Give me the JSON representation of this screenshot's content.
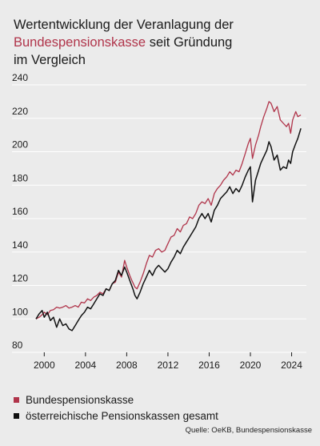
{
  "header": {
    "title_line1": "Wertentwicklung der Veranlagung der",
    "title_highlight": "Bundespensionskasse",
    "title_line2_rest": " seit Gründung",
    "title_line3": "im Vergleich"
  },
  "colors": {
    "accent": "#b0344a",
    "series_black": "#111111",
    "background": "#ebebeb"
  },
  "legend": [
    {
      "label": "Bundespensionskasse",
      "color": "#b0344a"
    },
    {
      "label": "österreichische Pensionskassen gesamt",
      "color": "#111111"
    }
  ],
  "source": "Quelle: OeKB, Bundespensionskasse",
  "chart_data": {
    "type": "line",
    "xlim": [
      1999.2,
      2025.2
    ],
    "ylim": [
      80,
      240
    ],
    "x_ticks": [
      2000,
      2004,
      2008,
      2012,
      2016,
      2020,
      2024
    ],
    "x_tick_labels": [
      "2000",
      "2004",
      "2008",
      "2012",
      "2016",
      "2020",
      "2024"
    ],
    "y_ticks": [
      80,
      100,
      120,
      140,
      160,
      180,
      200,
      220,
      240
    ],
    "y_tick_labels": [
      "80",
      "100",
      "120",
      "140",
      "160",
      "180",
      "200",
      "220",
      "240"
    ],
    "grid": true,
    "series": [
      {
        "name": "Bundespensionskasse",
        "color": "#b0344a",
        "points": [
          [
            1999.2,
            100
          ],
          [
            1999.5,
            101
          ],
          [
            1999.8,
            102.5
          ],
          [
            2000.0,
            104
          ],
          [
            2000.3,
            102.5
          ],
          [
            2000.6,
            105
          ],
          [
            2000.9,
            105.5
          ],
          [
            2001.2,
            107
          ],
          [
            2001.5,
            106.5
          ],
          [
            2001.8,
            107
          ],
          [
            2002.1,
            108
          ],
          [
            2002.4,
            106.5
          ],
          [
            2002.7,
            107
          ],
          [
            2003.0,
            108
          ],
          [
            2003.3,
            107
          ],
          [
            2003.6,
            110
          ],
          [
            2003.9,
            109.5
          ],
          [
            2004.2,
            112
          ],
          [
            2004.5,
            111
          ],
          [
            2004.8,
            113
          ],
          [
            2005.1,
            114
          ],
          [
            2005.4,
            116
          ],
          [
            2005.7,
            115
          ],
          [
            2006.0,
            118
          ],
          [
            2006.3,
            117
          ],
          [
            2006.6,
            121
          ],
          [
            2006.9,
            122
          ],
          [
            2007.2,
            128
          ],
          [
            2007.5,
            125
          ],
          [
            2007.8,
            135
          ],
          [
            2008.0,
            131
          ],
          [
            2008.3,
            126
          ],
          [
            2008.5,
            123
          ],
          [
            2008.8,
            119
          ],
          [
            2009.0,
            118
          ],
          [
            2009.3,
            122
          ],
          [
            2009.6,
            127
          ],
          [
            2009.9,
            133
          ],
          [
            2010.2,
            138
          ],
          [
            2010.5,
            137
          ],
          [
            2010.8,
            141
          ],
          [
            2011.1,
            142
          ],
          [
            2011.4,
            140
          ],
          [
            2011.7,
            141
          ],
          [
            2012.0,
            145
          ],
          [
            2012.3,
            149
          ],
          [
            2012.6,
            150
          ],
          [
            2012.9,
            154
          ],
          [
            2013.2,
            152
          ],
          [
            2013.5,
            156
          ],
          [
            2013.8,
            157
          ],
          [
            2014.1,
            161
          ],
          [
            2014.4,
            160
          ],
          [
            2014.7,
            163
          ],
          [
            2015.0,
            168
          ],
          [
            2015.3,
            170
          ],
          [
            2015.6,
            169
          ],
          [
            2015.9,
            172
          ],
          [
            2016.2,
            168
          ],
          [
            2016.5,
            175
          ],
          [
            2016.8,
            178
          ],
          [
            2017.1,
            180
          ],
          [
            2017.4,
            183
          ],
          [
            2017.7,
            185
          ],
          [
            2018.0,
            188
          ],
          [
            2018.3,
            186
          ],
          [
            2018.6,
            189
          ],
          [
            2018.9,
            188
          ],
          [
            2019.2,
            193
          ],
          [
            2019.5,
            199
          ],
          [
            2019.8,
            205
          ],
          [
            2020.0,
            208
          ],
          [
            2020.2,
            196
          ],
          [
            2020.5,
            204
          ],
          [
            2020.8,
            210
          ],
          [
            2021.0,
            215
          ],
          [
            2021.3,
            221
          ],
          [
            2021.6,
            226
          ],
          [
            2021.8,
            230
          ],
          [
            2022.0,
            229
          ],
          [
            2022.3,
            224
          ],
          [
            2022.6,
            227
          ],
          [
            2022.9,
            219
          ],
          [
            2023.2,
            217
          ],
          [
            2023.5,
            215
          ],
          [
            2023.7,
            217
          ],
          [
            2023.9,
            211
          ],
          [
            2024.1,
            219
          ],
          [
            2024.4,
            224
          ],
          [
            2024.6,
            221
          ],
          [
            2024.9,
            222
          ]
        ]
      },
      {
        "name": "österreichische Pensionskassen gesamt",
        "color": "#111111",
        "points": [
          [
            1999.2,
            100
          ],
          [
            1999.5,
            103
          ],
          [
            1999.8,
            105
          ],
          [
            2000.0,
            101
          ],
          [
            2000.3,
            104
          ],
          [
            2000.6,
            99
          ],
          [
            2000.9,
            101
          ],
          [
            2001.2,
            95
          ],
          [
            2001.5,
            100
          ],
          [
            2001.8,
            96
          ],
          [
            2002.1,
            97
          ],
          [
            2002.4,
            94
          ],
          [
            2002.7,
            93
          ],
          [
            2003.0,
            96
          ],
          [
            2003.3,
            99
          ],
          [
            2003.6,
            102
          ],
          [
            2003.9,
            104
          ],
          [
            2004.2,
            107
          ],
          [
            2004.5,
            106
          ],
          [
            2004.8,
            109
          ],
          [
            2005.1,
            112
          ],
          [
            2005.4,
            115
          ],
          [
            2005.7,
            114
          ],
          [
            2006.0,
            118
          ],
          [
            2006.3,
            117
          ],
          [
            2006.6,
            121
          ],
          [
            2006.9,
            123
          ],
          [
            2007.2,
            129
          ],
          [
            2007.5,
            126
          ],
          [
            2007.8,
            131
          ],
          [
            2008.0,
            128
          ],
          [
            2008.3,
            123
          ],
          [
            2008.6,
            118
          ],
          [
            2008.8,
            114
          ],
          [
            2009.0,
            112
          ],
          [
            2009.3,
            116
          ],
          [
            2009.6,
            121
          ],
          [
            2009.9,
            125
          ],
          [
            2010.2,
            129
          ],
          [
            2010.5,
            126
          ],
          [
            2010.8,
            130
          ],
          [
            2011.1,
            132
          ],
          [
            2011.4,
            130
          ],
          [
            2011.7,
            128
          ],
          [
            2012.0,
            130
          ],
          [
            2012.3,
            134
          ],
          [
            2012.6,
            137
          ],
          [
            2012.9,
            141
          ],
          [
            2013.2,
            139
          ],
          [
            2013.5,
            143
          ],
          [
            2013.8,
            146
          ],
          [
            2014.1,
            149
          ],
          [
            2014.4,
            152
          ],
          [
            2014.7,
            155
          ],
          [
            2015.0,
            160
          ],
          [
            2015.3,
            163
          ],
          [
            2015.6,
            160
          ],
          [
            2015.9,
            163
          ],
          [
            2016.2,
            158
          ],
          [
            2016.5,
            165
          ],
          [
            2016.8,
            168
          ],
          [
            2017.1,
            172
          ],
          [
            2017.4,
            174
          ],
          [
            2017.7,
            176
          ],
          [
            2018.0,
            179
          ],
          [
            2018.3,
            175
          ],
          [
            2018.6,
            178
          ],
          [
            2018.9,
            176
          ],
          [
            2019.2,
            180
          ],
          [
            2019.5,
            185
          ],
          [
            2019.8,
            189
          ],
          [
            2020.0,
            191
          ],
          [
            2020.2,
            170
          ],
          [
            2020.5,
            183
          ],
          [
            2020.8,
            189
          ],
          [
            2021.0,
            193
          ],
          [
            2021.3,
            197
          ],
          [
            2021.6,
            201
          ],
          [
            2021.8,
            206
          ],
          [
            2022.0,
            203
          ],
          [
            2022.3,
            195
          ],
          [
            2022.6,
            198
          ],
          [
            2022.9,
            189
          ],
          [
            2023.2,
            191
          ],
          [
            2023.5,
            190
          ],
          [
            2023.7,
            195
          ],
          [
            2023.9,
            193
          ],
          [
            2024.1,
            200
          ],
          [
            2024.4,
            205
          ],
          [
            2024.6,
            208
          ],
          [
            2024.9,
            214
          ]
        ]
      }
    ]
  }
}
